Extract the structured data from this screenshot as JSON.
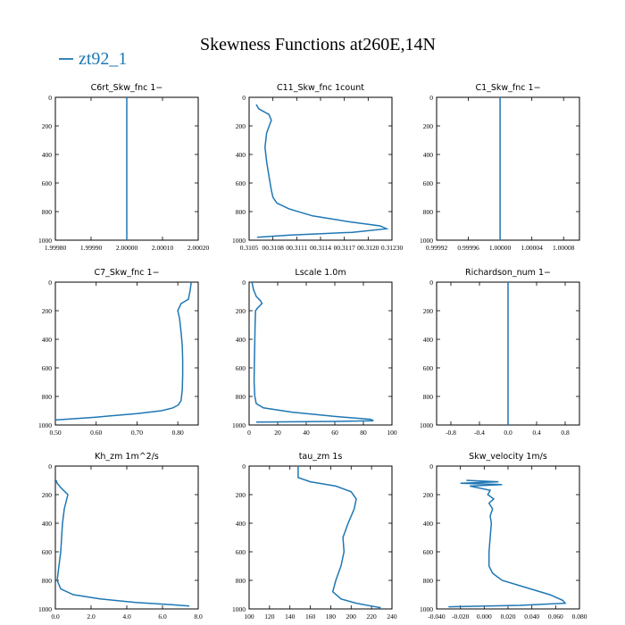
{
  "chart_data": {
    "title": "Skewness Functions at260E,14N",
    "legend": [
      {
        "label": "zt92_1",
        "color": "#1f77b4"
      }
    ],
    "series_color": "#1f77b4",
    "y_axis": {
      "range": [
        1000,
        0
      ],
      "ticks": [
        0,
        200,
        400,
        600,
        800,
        1000
      ],
      "tick_labels": [
        "0",
        "200",
        "400",
        "600",
        "800",
        "1000"
      ]
    },
    "panels": [
      {
        "type": "line",
        "title": "C6rt_Skw_fnc   1−",
        "xlim": [
          1.9998,
          2.0002
        ],
        "xticks": [
          1.9998,
          1.9999,
          2.0,
          2.0001,
          2.0002
        ],
        "xtick_labels": [
          "1.99980",
          "1.99990",
          "2.00000",
          "2.00010",
          "2.00020"
        ],
        "x": [
          2.0,
          2.0
        ],
        "y": [
          0,
          1000
        ]
      },
      {
        "type": "line",
        "title": "C11_Skw_fnc   1count",
        "xlim": [
          0.3105,
          0.3123
        ],
        "xticks": [
          0.3105,
          0.3108,
          0.3111,
          0.3114,
          0.3117,
          0.312,
          0.3123
        ],
        "xtick_labels": [
          "0.3105",
          "00.3108",
          "00.3111",
          "00.3114",
          "00.3117",
          "00.3120",
          "0.31230"
        ],
        "x": [
          0.31059,
          0.31062,
          0.31075,
          0.31078,
          0.31072,
          0.3107,
          0.31072,
          0.31075,
          0.31078,
          0.3108,
          0.31085,
          0.311,
          0.3113,
          0.31175,
          0.31215,
          0.31223,
          0.3118,
          0.311,
          0.3106
        ],
        "y": [
          50,
          80,
          120,
          160,
          250,
          350,
          450,
          550,
          650,
          700,
          740,
          780,
          830,
          870,
          900,
          920,
          945,
          965,
          980
        ]
      },
      {
        "type": "line",
        "title": "C1_Skw_fnc   1−",
        "xlim": [
          0.99992,
          1.0001
        ],
        "xticks": [
          0.99992,
          0.99996,
          1.0,
          1.00004,
          1.00008
        ],
        "xtick_labels": [
          "0.99992",
          "0.99996",
          "1.00000",
          "1.00004",
          "1.00008"
        ],
        "x": [
          1.0,
          1.0
        ],
        "y": [
          0,
          1000
        ]
      },
      {
        "type": "line",
        "title": "C7_Skw_fnc   1−",
        "xlim": [
          0.5,
          0.85
        ],
        "xticks": [
          0.5,
          0.6,
          0.7,
          0.8
        ],
        "xtick_labels": [
          "0.50",
          "0.60",
          "0.70",
          "0.80"
        ],
        "x": [
          0.833,
          0.83,
          0.826,
          0.808,
          0.8,
          0.804,
          0.808,
          0.811,
          0.812,
          0.812,
          0.811,
          0.809,
          0.808,
          0.801,
          0.788,
          0.76,
          0.7,
          0.6,
          0.5
        ],
        "y": [
          0,
          60,
          120,
          150,
          200,
          250,
          350,
          450,
          550,
          650,
          750,
          800,
          830,
          860,
          880,
          900,
          920,
          945,
          965
        ]
      },
      {
        "type": "line",
        "title": "Lscale   1.0m",
        "xlim": [
          0,
          100
        ],
        "xticks": [
          0,
          20,
          40,
          60,
          80,
          100
        ],
        "xtick_labels": [
          "0",
          "20",
          "40",
          "60",
          "80",
          "100"
        ],
        "x": [
          2,
          3,
          5,
          8,
          9,
          6,
          4.5,
          4.2,
          4.0,
          3.8,
          3.6,
          3.5,
          4.0,
          5,
          10,
          30,
          60,
          85,
          87,
          60,
          5
        ],
        "y": [
          0,
          50,
          100,
          130,
          150,
          180,
          200,
          300,
          400,
          500,
          600,
          700,
          800,
          850,
          880,
          910,
          940,
          960,
          970,
          975,
          980
        ]
      },
      {
        "type": "line",
        "title": "Richardson_num   1−",
        "xlim": [
          -1.0,
          1.0
        ],
        "xticks": [
          -0.8,
          -0.4,
          0.0,
          0.4,
          0.8
        ],
        "xtick_labels": [
          "-0.8",
          "-0.4",
          "0.0",
          "0.4",
          "0.8"
        ],
        "x": [
          0.0,
          0.0
        ],
        "y": [
          0,
          1000
        ]
      },
      {
        "type": "line",
        "title": "Kh_zm   1m^2/s",
        "xlim": [
          0,
          8
        ],
        "xticks": [
          0,
          2,
          4,
          6,
          8
        ],
        "xtick_labels": [
          "0.0",
          "2.0",
          "4.0",
          "6.0",
          "8.0"
        ],
        "x": [
          0.05,
          0.1,
          0.3,
          0.7,
          0.5,
          0.4,
          0.35,
          0.3,
          0.2,
          0.1,
          0.3,
          1.0,
          2.5,
          4.5,
          6.5,
          7.5
        ],
        "y": [
          100,
          120,
          150,
          200,
          300,
          400,
          500,
          600,
          700,
          800,
          860,
          900,
          930,
          955,
          970,
          980
        ]
      },
      {
        "type": "line",
        "title": "tau_zm   1s",
        "xlim": [
          100,
          240
        ],
        "xticks": [
          100,
          120,
          140,
          160,
          180,
          200,
          220,
          240
        ],
        "xtick_labels": [
          "100",
          "120",
          "140",
          "160",
          "180",
          "200",
          "220",
          "240"
        ],
        "x": [
          148,
          148,
          160,
          185,
          200,
          205,
          203,
          197,
          192,
          193,
          190,
          185,
          182,
          190,
          205,
          220,
          228,
          226
        ],
        "y": [
          0,
          80,
          110,
          140,
          180,
          230,
          300,
          400,
          500,
          600,
          700,
          800,
          880,
          930,
          960,
          980,
          990,
          1000
        ]
      },
      {
        "type": "line",
        "title": "Skw_velocity   1m/s",
        "xlim": [
          -0.04,
          0.08
        ],
        "xticks": [
          -0.04,
          -0.02,
          0.0,
          0.02,
          0.04,
          0.06,
          0.08
        ],
        "xtick_labels": [
          "-0.040",
          "-0.020",
          "0.000",
          "0.020",
          "0.040",
          "0.060",
          "0.080"
        ],
        "x": [
          -0.015,
          0.012,
          -0.02,
          0.015,
          -0.012,
          0.005,
          0.003,
          0.008,
          0.004,
          0.007,
          0.005,
          0.006,
          0.005,
          0.004,
          0.004,
          0.007,
          0.015,
          0.035,
          0.055,
          0.066,
          0.068,
          0.03,
          -0.03
        ],
        "y": [
          100,
          110,
          120,
          130,
          140,
          170,
          200,
          230,
          260,
          300,
          350,
          400,
          500,
          600,
          700,
          750,
          800,
          850,
          900,
          940,
          960,
          975,
          985
        ]
      }
    ]
  }
}
